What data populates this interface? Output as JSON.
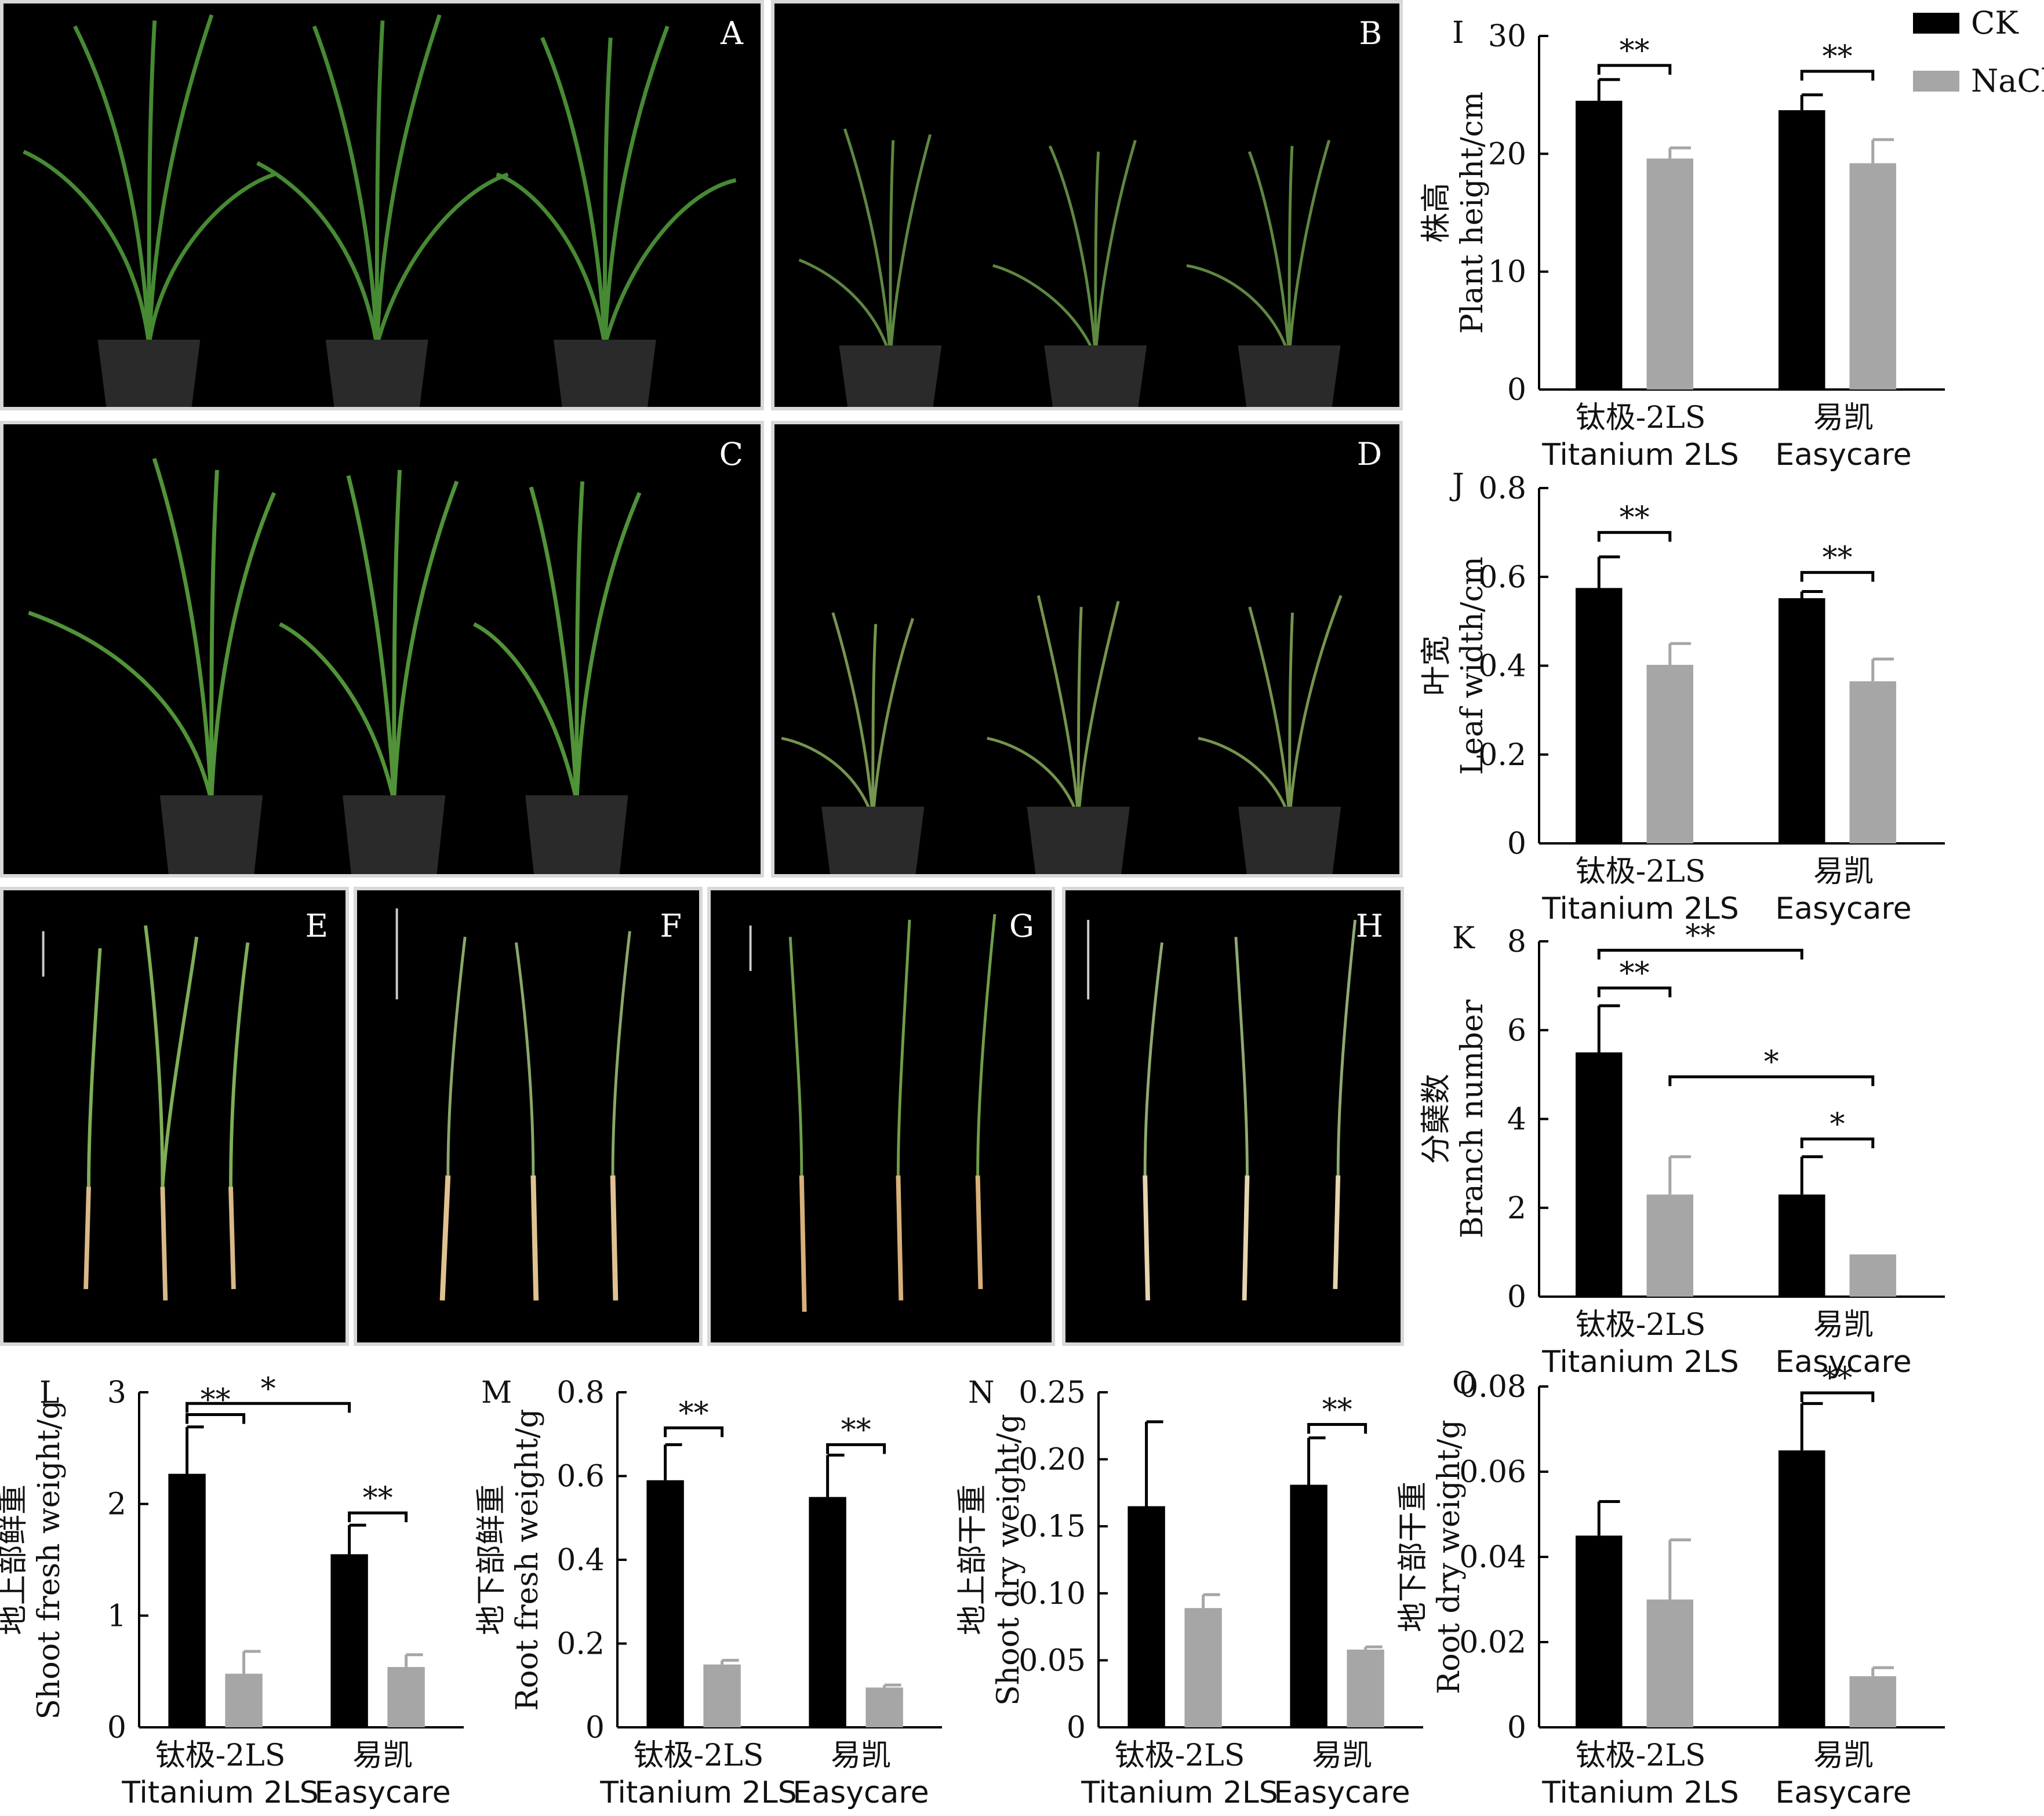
{
  "legend": [
    {
      "name": "CK",
      "color": "#000000"
    },
    {
      "name": "NaCl",
      "color": "#a6a6a6"
    }
  ],
  "photos": [
    {
      "label": "A",
      "content": "three potted plants, control"
    },
    {
      "label": "B",
      "content": "three potted plants, salt treated"
    },
    {
      "label": "C",
      "content": "three potted plants, control"
    },
    {
      "label": "D",
      "content": "three potted plants, salt treated"
    },
    {
      "label": "E",
      "content": "three uprooted plants"
    },
    {
      "label": "F",
      "content": "three uprooted plants"
    },
    {
      "label": "G",
      "content": "three uprooted plants"
    },
    {
      "label": "H",
      "content": "three uprooted plants"
    }
  ],
  "chart_data": [
    {
      "panel": "I",
      "type": "bar",
      "categories": [
        [
          "钛极-2LS",
          "Titanium 2LS"
        ],
        [
          "易凯",
          "Easycare"
        ]
      ],
      "ylabel_cn": "株高",
      "ylabel_en": "Plant height/cm",
      "ylim": [
        0,
        30
      ],
      "ticks": [
        0,
        10,
        20,
        30
      ],
      "tick_labels": [
        "0",
        "10",
        "20",
        "30"
      ],
      "series": [
        {
          "name": "CK",
          "values": [
            24.5,
            23.7
          ],
          "errors": [
            1.8,
            1.3
          ]
        },
        {
          "name": "NaCl",
          "values": [
            19.6,
            19.2
          ],
          "errors": [
            0.9,
            2.0
          ]
        }
      ],
      "sig": [
        {
          "from": [
            0,
            0
          ],
          "to": [
            0,
            1
          ],
          "y": 27.5,
          "text": "**"
        },
        {
          "from": [
            1,
            0
          ],
          "to": [
            1,
            1
          ],
          "y": 27.0,
          "text": "**"
        }
      ]
    },
    {
      "panel": "J",
      "type": "bar",
      "categories": [
        [
          "钛极-2LS",
          "Titanium 2LS"
        ],
        [
          "易凯",
          "Easycare"
        ]
      ],
      "ylabel_cn": "叶宽",
      "ylabel_en": "Leaf width/cm",
      "ylim": [
        0,
        0.8
      ],
      "ticks": [
        0,
        0.2,
        0.4,
        0.6,
        0.8
      ],
      "tick_labels": [
        "0",
        "0.2",
        "0.4",
        "0.6",
        "0.8"
      ],
      "series": [
        {
          "name": "CK",
          "values": [
            0.575,
            0.552
          ],
          "errors": [
            0.07,
            0.015
          ]
        },
        {
          "name": "NaCl",
          "values": [
            0.402,
            0.365
          ],
          "errors": [
            0.048,
            0.05
          ]
        }
      ],
      "sig": [
        {
          "from": [
            0,
            0
          ],
          "to": [
            0,
            1
          ],
          "y": 0.7,
          "text": "**"
        },
        {
          "from": [
            1,
            0
          ],
          "to": [
            1,
            1
          ],
          "y": 0.61,
          "text": "**"
        }
      ]
    },
    {
      "panel": "K",
      "type": "bar",
      "categories": [
        [
          "钛极-2LS",
          "Titanium 2LS"
        ],
        [
          "易凯",
          "Easycare"
        ]
      ],
      "ylabel_cn": "分蘖数",
      "ylabel_en": "Branch number",
      "ylim": [
        0,
        8
      ],
      "ticks": [
        0,
        2,
        4,
        6,
        8
      ],
      "tick_labels": [
        "0",
        "2",
        "4",
        "6",
        "8"
      ],
      "series": [
        {
          "name": "CK",
          "values": [
            5.5,
            2.3
          ],
          "errors": [
            1.05,
            0.85
          ]
        },
        {
          "name": "NaCl",
          "values": [
            2.3,
            0.95
          ],
          "errors": [
            0.85,
            0.0
          ]
        }
      ],
      "sig": [
        {
          "from": [
            0,
            0
          ],
          "to": [
            1,
            0
          ],
          "y": 7.8,
          "text": "**"
        },
        {
          "from": [
            0,
            0
          ],
          "to": [
            0,
            1
          ],
          "y": 6.95,
          "text": "**"
        },
        {
          "from": [
            0,
            1
          ],
          "to": [
            1,
            1
          ],
          "y": 4.95,
          "text": "*"
        },
        {
          "from": [
            1,
            0
          ],
          "to": [
            1,
            1
          ],
          "y": 3.55,
          "text": "*"
        }
      ]
    },
    {
      "panel": "L",
      "type": "bar",
      "categories": [
        [
          "钛极-2LS",
          "Titanium 2LS"
        ],
        [
          "易凯",
          "Easycare"
        ]
      ],
      "ylabel_cn": "地上部鲜重",
      "ylabel_en": "Shoot fresh weight/g",
      "ylim": [
        0,
        3
      ],
      "ticks": [
        0,
        1,
        2,
        3
      ],
      "tick_labels": [
        "0",
        "1",
        "2",
        "3"
      ],
      "series": [
        {
          "name": "CK",
          "values": [
            2.27,
            1.55
          ],
          "errors": [
            0.42,
            0.26
          ]
        },
        {
          "name": "NaCl",
          "values": [
            0.48,
            0.54
          ],
          "errors": [
            0.2,
            0.11
          ]
        }
      ],
      "sig": [
        {
          "from": [
            0,
            0
          ],
          "to": [
            1,
            0
          ],
          "y": 2.9,
          "text": "*"
        },
        {
          "from": [
            0,
            0
          ],
          "to": [
            0,
            1
          ],
          "y": 2.8,
          "text": "**"
        },
        {
          "from": [
            1,
            0
          ],
          "to": [
            1,
            1
          ],
          "y": 1.92,
          "text": "**"
        }
      ]
    },
    {
      "panel": "M",
      "type": "bar",
      "categories": [
        [
          "钛极-2LS",
          "Titanium 2LS"
        ],
        [
          "易凯",
          "Easycare"
        ]
      ],
      "ylabel_cn": "地下部鲜重",
      "ylabel_en": "Root fresh weight/g",
      "ylim": [
        0,
        0.8
      ],
      "ticks": [
        0,
        0.2,
        0.4,
        0.6,
        0.8
      ],
      "tick_labels": [
        "0",
        "0.2",
        "0.4",
        "0.6",
        "0.8"
      ],
      "series": [
        {
          "name": "CK",
          "values": [
            0.59,
            0.55
          ],
          "errors": [
            0.085,
            0.1
          ]
        },
        {
          "name": "NaCl",
          "values": [
            0.15,
            0.095
          ],
          "errors": [
            0.01,
            0.006
          ]
        }
      ],
      "sig": [
        {
          "from": [
            0,
            0
          ],
          "to": [
            0,
            1
          ],
          "y": 0.715,
          "text": "**"
        },
        {
          "from": [
            1,
            0
          ],
          "to": [
            1,
            1
          ],
          "y": 0.675,
          "text": "**"
        }
      ]
    },
    {
      "panel": "N",
      "type": "bar",
      "categories": [
        [
          "钛极-2LS",
          "Titanium 2LS"
        ],
        [
          "易凯",
          "Easycare"
        ]
      ],
      "ylabel_cn": "地上部干重",
      "ylabel_en": "Shoot dry weight/g",
      "ylim": [
        0,
        0.25
      ],
      "ticks": [
        0,
        0.05,
        0.1,
        0.15,
        0.2,
        0.25
      ],
      "tick_labels": [
        "0",
        "0.05",
        "0.10",
        "0.15",
        "0.20",
        "0.25"
      ],
      "series": [
        {
          "name": "CK",
          "values": [
            0.165,
            0.181
          ],
          "errors": [
            0.063,
            0.035
          ]
        },
        {
          "name": "NaCl",
          "values": [
            0.089,
            0.058
          ],
          "errors": [
            0.01,
            0.002
          ]
        }
      ],
      "sig": [
        {
          "from": [
            1,
            0
          ],
          "to": [
            1,
            1
          ],
          "y": 0.226,
          "text": "**"
        }
      ]
    },
    {
      "panel": "O",
      "type": "bar",
      "categories": [
        [
          "钛极-2LS",
          "Titanium 2LS"
        ],
        [
          "易凯",
          "Easycare"
        ]
      ],
      "ylabel_cn": "地下部干重",
      "ylabel_en": "Root dry weight/g",
      "ylim": [
        0,
        0.08
      ],
      "ticks": [
        0,
        0.02,
        0.04,
        0.06,
        0.08
      ],
      "tick_labels": [
        "0",
        "0.02",
        "0.04",
        "0.06",
        "0.08"
      ],
      "series": [
        {
          "name": "CK",
          "values": [
            0.045,
            0.065
          ],
          "errors": [
            0.008,
            0.011
          ]
        },
        {
          "name": "NaCl",
          "values": [
            0.03,
            0.012
          ],
          "errors": [
            0.014,
            0.002
          ]
        }
      ],
      "sig": [
        {
          "from": [
            1,
            0
          ],
          "to": [
            1,
            1
          ],
          "y": 0.0785,
          "text": "**"
        }
      ]
    }
  ]
}
